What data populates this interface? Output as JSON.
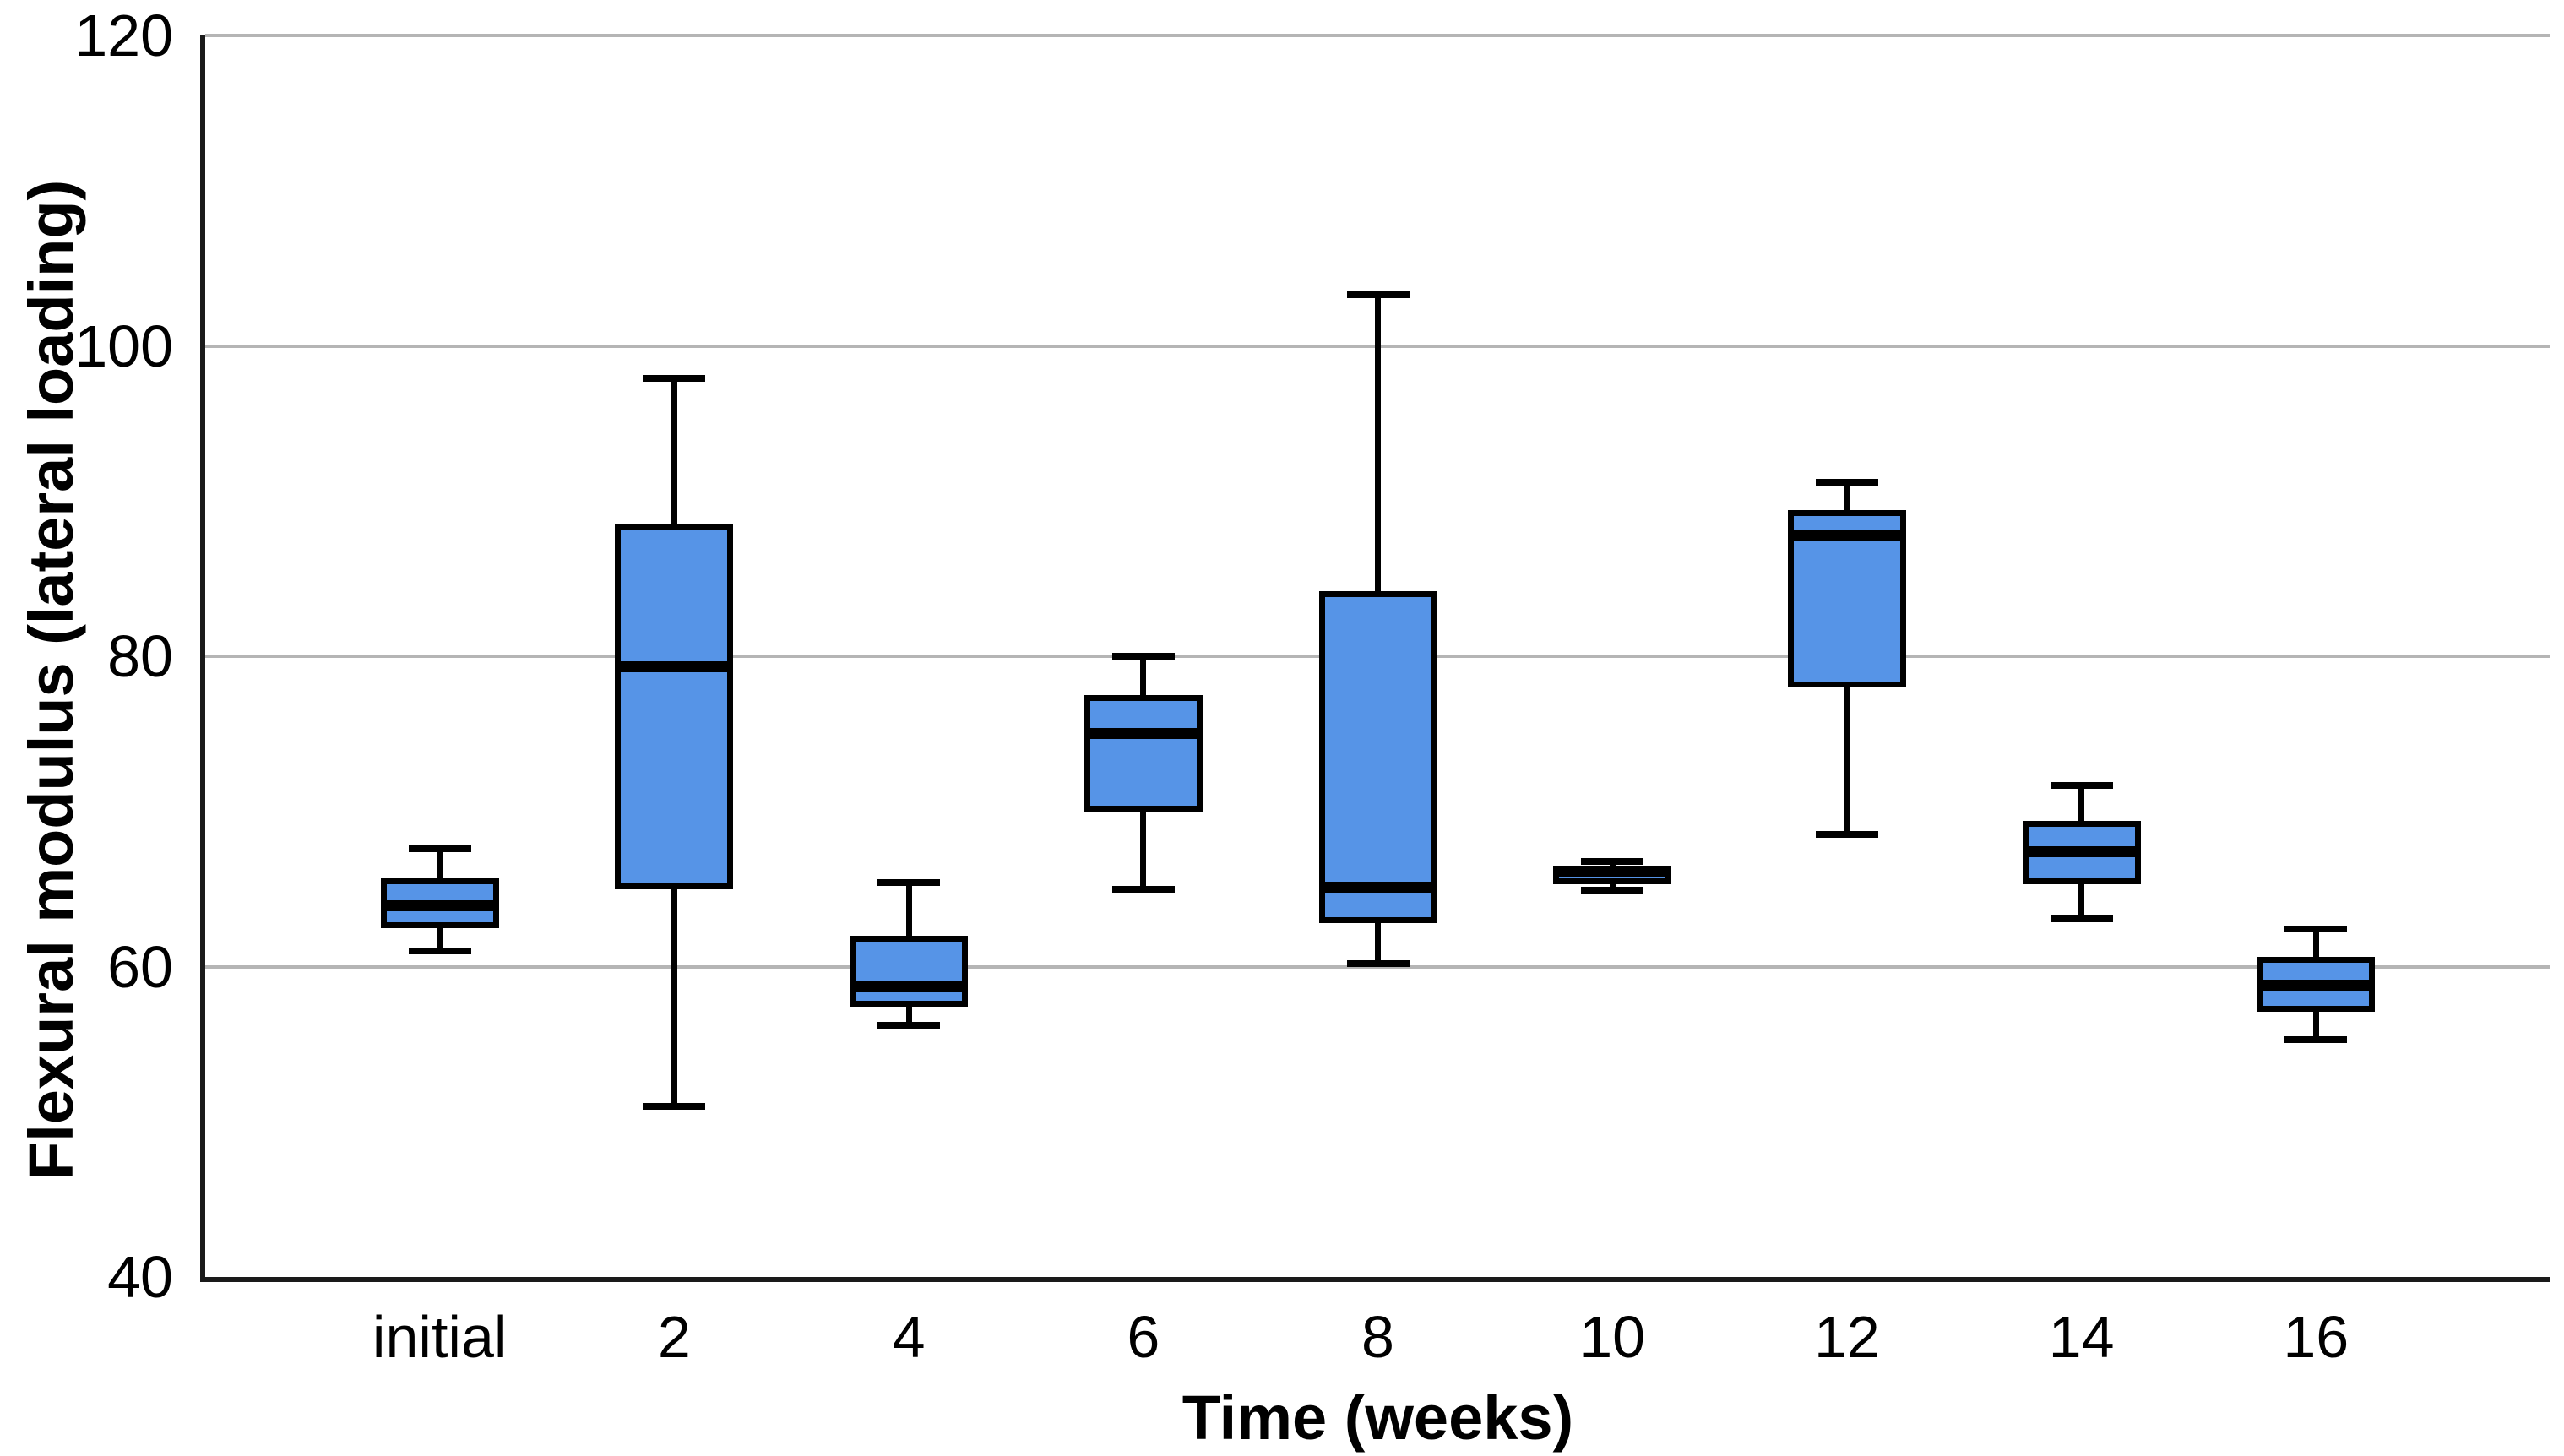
{
  "chart_data": {
    "type": "boxplot",
    "title": "",
    "xlabel": "Time (weeks)",
    "ylabel": "Flexural modulus (lateral loading)",
    "categories": [
      "initial",
      "2",
      "4",
      "6",
      "8",
      "10",
      "12",
      "14",
      "16"
    ],
    "ylim": [
      40,
      120
    ],
    "yticks": [
      40,
      60,
      80,
      100,
      120
    ],
    "gridlines_at": [
      60,
      80,
      100,
      120
    ],
    "grid": true,
    "legend": false,
    "colors": {
      "box_fill": "#5694e7",
      "box_stroke": "#000000",
      "gridline": "#b5b5b5",
      "axis_line": "#1a1a1a",
      "text": "#000000",
      "background": "#ffffff"
    },
    "series": [
      {
        "category": "initial",
        "min": 61.0,
        "q1": 62.5,
        "median": 63.9,
        "q3": 65.7,
        "max": 67.6
      },
      {
        "category": "2",
        "min": 51.0,
        "q1": 65.0,
        "median": 79.3,
        "q3": 88.5,
        "max": 97.9
      },
      {
        "category": "4",
        "min": 56.2,
        "q1": 57.4,
        "median": 58.7,
        "q3": 62.0,
        "max": 65.4
      },
      {
        "category": "6",
        "min": 65.0,
        "q1": 70.0,
        "median": 75.0,
        "q3": 77.5,
        "max": 80.0
      },
      {
        "category": "8",
        "min": 60.2,
        "q1": 62.8,
        "median": 65.1,
        "q3": 84.2,
        "max": 103.3
      },
      {
        "category": "10",
        "min": 64.9,
        "q1": 65.3,
        "median": 66.1,
        "q3": 66.5,
        "max": 66.8
      },
      {
        "category": "12",
        "min": 68.5,
        "q1": 78.0,
        "median": 87.8,
        "q3": 89.4,
        "max": 91.2
      },
      {
        "category": "14",
        "min": 63.1,
        "q1": 65.3,
        "median": 67.4,
        "q3": 69.4,
        "max": 71.7
      },
      {
        "category": "16",
        "min": 55.3,
        "q1": 57.1,
        "median": 58.8,
        "q3": 60.6,
        "max": 62.4
      }
    ]
  }
}
